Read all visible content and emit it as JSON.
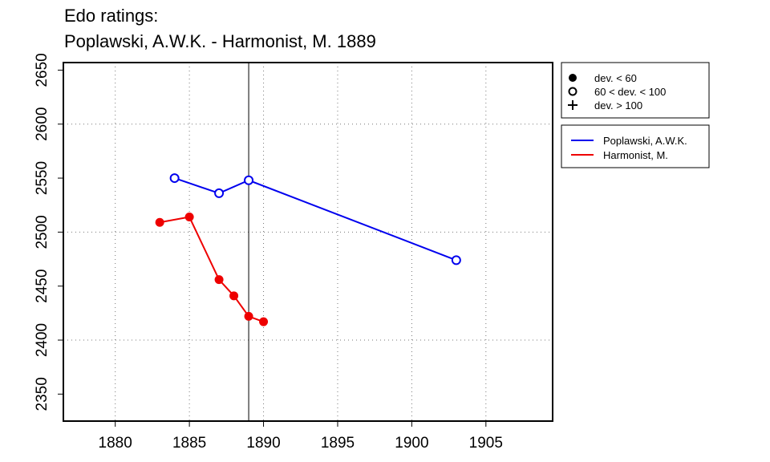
{
  "title_line1": "Edo ratings:",
  "title_line2": "Poplawski, A.W.K. - Harmonist, M. 1889",
  "chart_data": {
    "type": "line",
    "title": "Edo ratings: Poplawski, A.W.K. - Harmonist, M. 1889",
    "xlim": [
      1876.5,
      1909.5
    ],
    "ylim": [
      2325,
      2657
    ],
    "x_ticks": [
      1880,
      1885,
      1890,
      1895,
      1900,
      1905
    ],
    "y_ticks": [
      2350,
      2400,
      2450,
      2500,
      2550,
      2600,
      2650
    ],
    "x_tick_labels": [
      "1880",
      "1885",
      "1890",
      "1895",
      "1900",
      "1905"
    ],
    "y_tick_labels": [
      "2350",
      "2400",
      "2450",
      "2500",
      "2550",
      "2600",
      "2650"
    ],
    "x_grid": [
      1880,
      1885,
      1890,
      1895,
      1900,
      1905
    ],
    "y_grid": [
      2400,
      2500,
      2600
    ],
    "marker_line_x": 1889,
    "grid": "dotted",
    "series": [
      {
        "name": "Poplawski, A.W.K.",
        "color": "#0000ee",
        "points": [
          {
            "x": 1884,
            "y": 2550,
            "marker": "open-circle"
          },
          {
            "x": 1887,
            "y": 2536,
            "marker": "open-circle"
          },
          {
            "x": 1889,
            "y": 2548,
            "marker": "open-circle"
          },
          {
            "x": 1903,
            "y": 2474,
            "marker": "open-circle"
          }
        ]
      },
      {
        "name": "Harmonist, M.",
        "color": "#ee0000",
        "points": [
          {
            "x": 1883,
            "y": 2509,
            "marker": "filled-circle"
          },
          {
            "x": 1885,
            "y": 2514,
            "marker": "filled-circle"
          },
          {
            "x": 1887,
            "y": 2456,
            "marker": "filled-circle"
          },
          {
            "x": 1888,
            "y": 2441,
            "marker": "filled-circle"
          },
          {
            "x": 1889,
            "y": 2422,
            "marker": "filled-circle"
          },
          {
            "x": 1890,
            "y": 2417,
            "marker": "filled-circle"
          }
        ]
      }
    ],
    "marker_legend": [
      {
        "symbol": "filled-circle",
        "label": "dev. < 60"
      },
      {
        "symbol": "open-circle",
        "label": "60 < dev. < 100"
      },
      {
        "symbol": "plus",
        "label": "dev. > 100"
      }
    ],
    "legend_position": "right"
  }
}
